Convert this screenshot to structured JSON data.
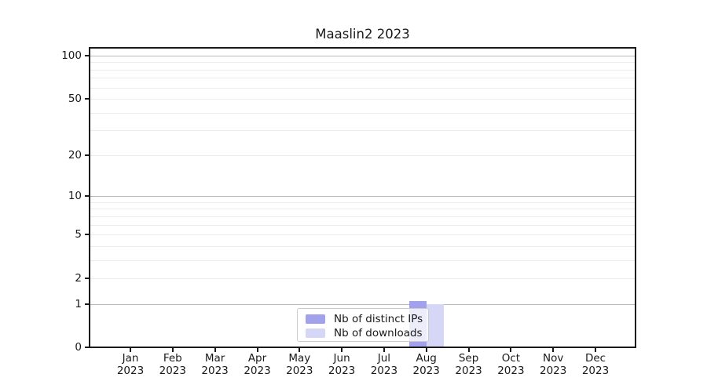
{
  "chart_data": {
    "type": "bar",
    "title": "Maaslin2 2023",
    "categories": [
      "Jan 2023",
      "Feb 2023",
      "Mar 2023",
      "Apr 2023",
      "May 2023",
      "Jun 2023",
      "Jul 2023",
      "Aug 2023",
      "Sep 2023",
      "Oct 2023",
      "Nov 2023",
      "Dec 2023"
    ],
    "series": [
      {
        "name": "Nb of distinct IPs",
        "color": "#a2a2ec",
        "values": [
          0,
          0,
          0,
          0,
          0,
          0,
          0,
          1,
          0,
          0,
          0,
          0
        ]
      },
      {
        "name": "Nb of downloads",
        "color": "#d6d6f7",
        "values": [
          0,
          0,
          0,
          0,
          0,
          0,
          0,
          1,
          0,
          0,
          0,
          0
        ]
      }
    ],
    "xlabel": "",
    "ylabel": "",
    "y_ticks": [
      0,
      1,
      2,
      5,
      10,
      20,
      50,
      100
    ],
    "y_scale": "log1p",
    "ylim": [
      0,
      115
    ],
    "grid": "horizontal, darker lines at 1/10/100, light minor log lines",
    "legend_position": "lower center inside plot",
    "colors": {
      "major_gridline": "#b9b9b9",
      "minor_gridline": "#ececec",
      "axis_frame": "#1a1a1a",
      "legend_border": "#cccccc"
    }
  }
}
